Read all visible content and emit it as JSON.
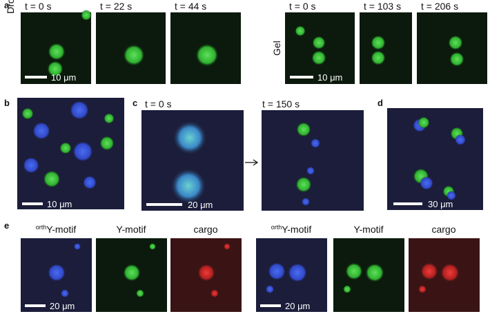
{
  "panel_a": {
    "label": "a",
    "droplet": {
      "label": "Droplet",
      "times": [
        "t = 0 s",
        "t = 22 s",
        "t = 44 s"
      ],
      "scale_bar": "10 μm"
    },
    "gel": {
      "label": "Gel",
      "times": [
        "t = 0 s",
        "t = 103 s",
        "t = 206 s"
      ],
      "scale_bar": "10 μm"
    }
  },
  "panel_b": {
    "label": "b",
    "scale_bar": "10 μm"
  },
  "panel_c": {
    "label": "c",
    "times": [
      "t = 0 s",
      "t = 150 s"
    ],
    "scale_bar": "20 μm"
  },
  "panel_d": {
    "label": "d",
    "scale_bar": "30 μm"
  },
  "panel_e": {
    "label": "e",
    "groups": [
      {
        "channels": [
          {
            "superscript": "orth",
            "name": "Y-motif"
          },
          {
            "name": "Y-motif"
          },
          {
            "name": "cargo"
          }
        ],
        "scale_bar": "20 μm"
      },
      {
        "channels": [
          {
            "superscript": "orth",
            "name": "Y-motif"
          },
          {
            "name": "Y-motif"
          },
          {
            "name": "cargo"
          }
        ],
        "scale_bar": "20 μm"
      }
    ]
  }
}
